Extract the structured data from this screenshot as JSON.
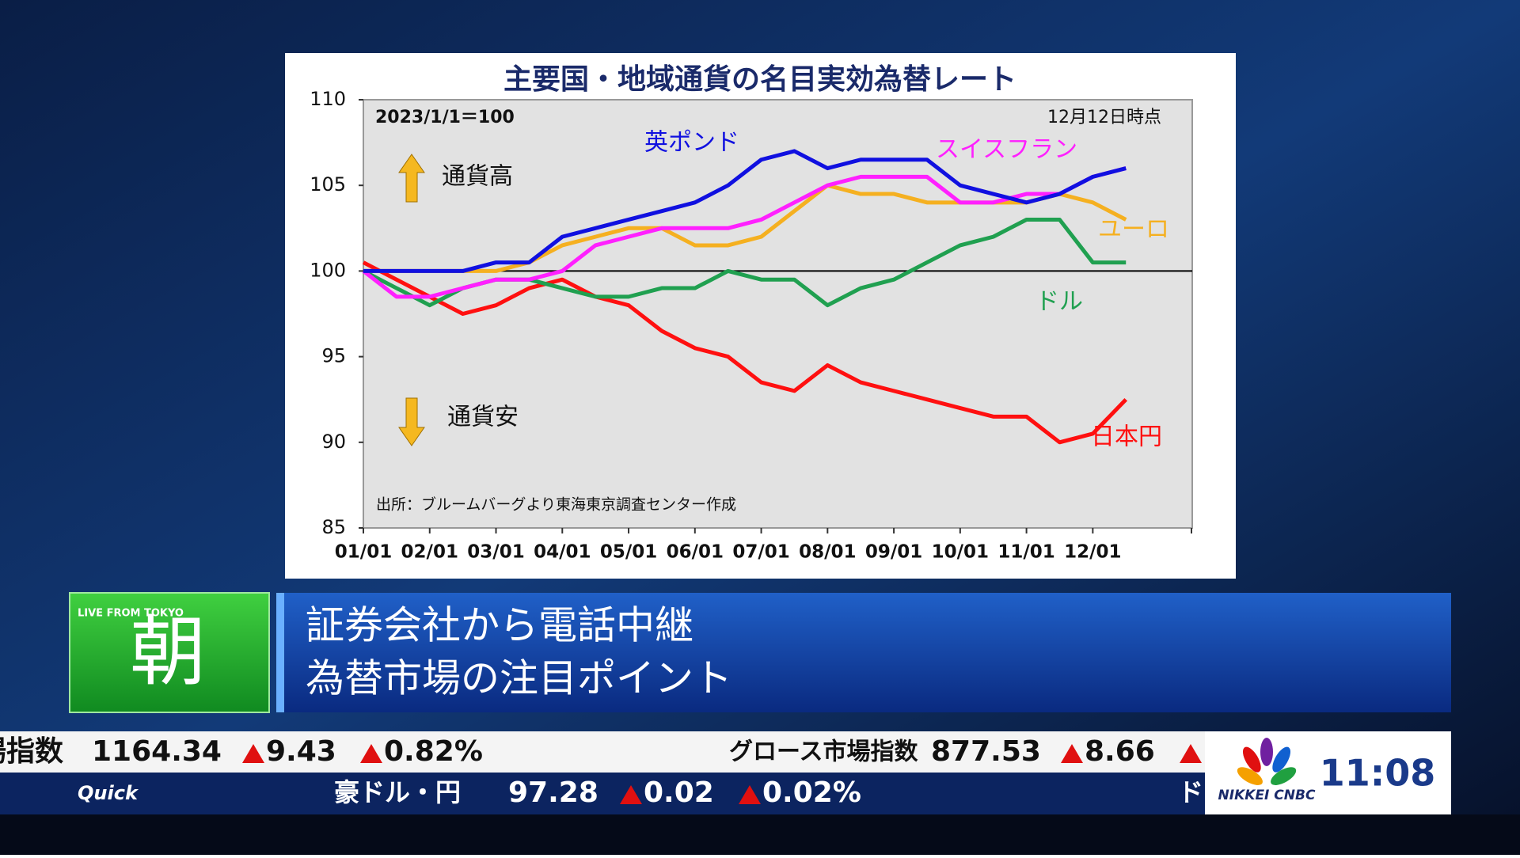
{
  "chart_data": {
    "type": "line",
    "title": "主要国・地域通貨の名目実効為替レート",
    "annotations": {
      "base": "2023/1/1＝100",
      "as_of": "12月12日時点",
      "up": "通貨高",
      "down": "通貨安",
      "source": "出所：ブルームバーグより東海東京調査センター作成"
    },
    "categories": [
      "01/01",
      null,
      "02/01",
      null,
      "03/01",
      null,
      "04/01",
      null,
      "05/01",
      null,
      "06/01",
      null,
      "07/01",
      null,
      "08/01",
      null,
      "09/01",
      null,
      "10/01",
      null,
      "11/01",
      null,
      "12/01",
      null
    ],
    "ylim": [
      85,
      110
    ],
    "yticks": [
      85,
      90,
      95,
      100,
      105,
      110
    ],
    "baseline": 100,
    "grid": false,
    "series": [
      {
        "name": "日本円",
        "color": "#ff1010",
        "values": [
          100.5,
          99.5,
          98.5,
          97.5,
          98,
          99,
          99.5,
          98.5,
          98,
          96.5,
          95.5,
          95,
          93.5,
          93,
          94.5,
          93.5,
          93,
          92.5,
          92,
          91.5,
          91.5,
          90,
          90.5,
          92.5
        ]
      },
      {
        "name": "ドル",
        "color": "#20a050",
        "values": [
          100,
          99,
          98,
          99,
          99.5,
          99.5,
          99,
          98.5,
          98.5,
          99,
          99,
          100,
          99.5,
          99.5,
          98,
          99,
          99.5,
          100.5,
          101.5,
          102,
          103,
          103,
          100.5,
          100.5
        ]
      },
      {
        "name": "ユーロ",
        "color": "#f5b020",
        "values": [
          100,
          100,
          100,
          100,
          100,
          100.5,
          101.5,
          102,
          102.5,
          102.5,
          101.5,
          101.5,
          102,
          103.5,
          105,
          104.5,
          104.5,
          104,
          104,
          104,
          104,
          104.5,
          104,
          103
        ]
      },
      {
        "name": "スイスフラン",
        "color": "#ff20ff",
        "values": [
          100,
          98.5,
          98.5,
          99,
          99.5,
          99.5,
          100,
          101.5,
          102,
          102.5,
          102.5,
          102.5,
          103,
          104,
          105,
          105.5,
          105.5,
          105.5,
          104,
          104,
          104.5,
          104.5,
          105.5,
          106
        ]
      },
      {
        "name": "英ポンド",
        "color": "#1010e0",
        "values": [
          100,
          100,
          100,
          100,
          100.5,
          100.5,
          102,
          102.5,
          103,
          103.5,
          104,
          105,
          106.5,
          107,
          106,
          106.5,
          106.5,
          106.5,
          105,
          104.5,
          104,
          104.5,
          105.5,
          106
        ]
      }
    ]
  },
  "lower_third": {
    "badge": "LIVE FROM TOKYO",
    "segment": "朝",
    "headline": [
      "証券会社から電話中継",
      "為替市場の注目ポイント"
    ]
  },
  "ticker": {
    "top": [
      "市場指数",
      "1164.34",
      "9.43",
      "0.82%",
      "グロース市場指数",
      "877.53",
      "8.66"
    ],
    "bottom": [
      "豪ドル・円",
      "97.28",
      "0.02",
      "0.02%",
      "ド"
    ],
    "source": "Quick"
  },
  "logo": "NIKKEI CNBC",
  "clock": "11:08"
}
